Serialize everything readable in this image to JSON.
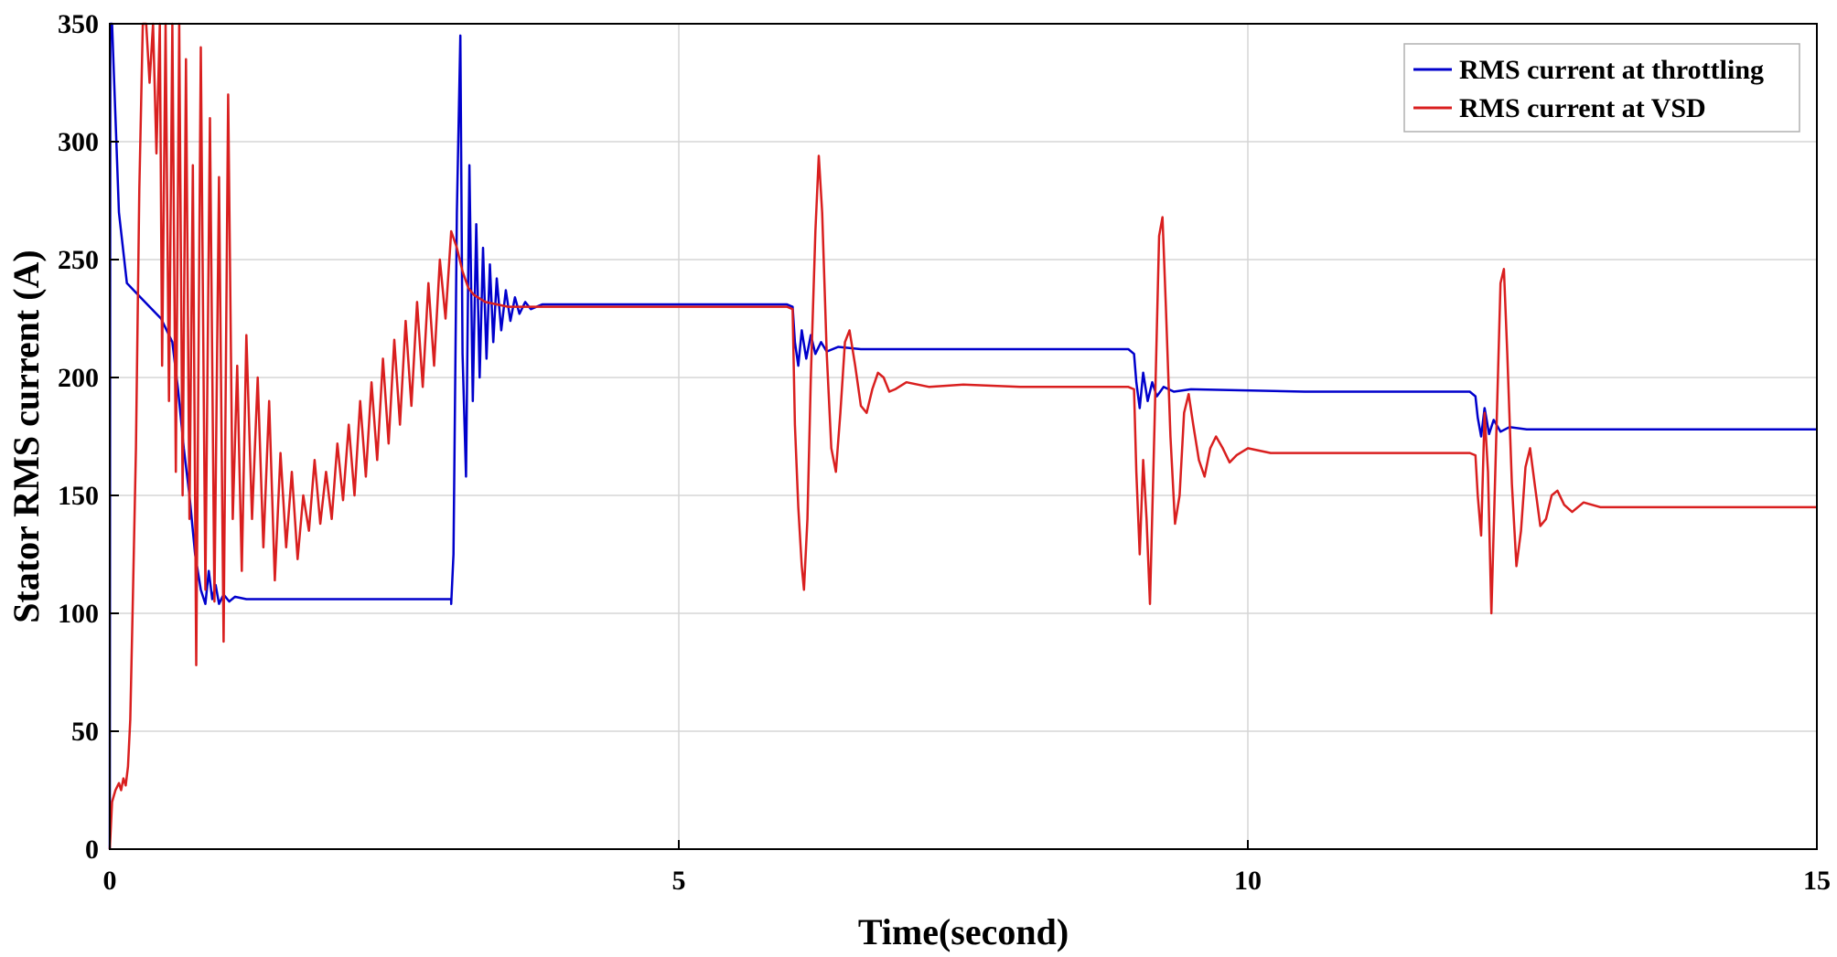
{
  "chart_data": {
    "type": "line",
    "xlabel": "Time(second)",
    "ylabel": "Stator RMS current (A)",
    "xlim": [
      0,
      15
    ],
    "ylim": [
      0,
      350
    ],
    "xticks": [
      0,
      5,
      10,
      15
    ],
    "yticks": [
      0,
      50,
      100,
      150,
      200,
      250,
      300,
      350
    ],
    "grid": true,
    "legend_position": "top-right",
    "series": [
      {
        "name": "RMS current at throttling",
        "color": "#0000cc",
        "points": [
          [
            0,
            0
          ],
          [
            0.005,
            350
          ],
          [
            0.02,
            350
          ],
          [
            0.08,
            270
          ],
          [
            0.15,
            240
          ],
          [
            0.25,
            235
          ],
          [
            0.35,
            230
          ],
          [
            0.45,
            225
          ],
          [
            0.55,
            215
          ],
          [
            0.6,
            195
          ],
          [
            0.65,
            170
          ],
          [
            0.7,
            150
          ],
          [
            0.75,
            125
          ],
          [
            0.8,
            110
          ],
          [
            0.84,
            104
          ],
          [
            0.87,
            118
          ],
          [
            0.9,
            106
          ],
          [
            0.93,
            112
          ],
          [
            0.96,
            104
          ],
          [
            1.0,
            108
          ],
          [
            1.05,
            105
          ],
          [
            1.1,
            107
          ],
          [
            1.2,
            106
          ],
          [
            1.5,
            106
          ],
          [
            2.0,
            106
          ],
          [
            2.5,
            106
          ],
          [
            2.9,
            106
          ],
          [
            3.0,
            106
          ],
          [
            3.0,
            104
          ],
          [
            3.02,
            125
          ],
          [
            3.05,
            270
          ],
          [
            3.08,
            345
          ],
          [
            3.1,
            210
          ],
          [
            3.13,
            158
          ],
          [
            3.16,
            290
          ],
          [
            3.19,
            190
          ],
          [
            3.22,
            265
          ],
          [
            3.25,
            200
          ],
          [
            3.28,
            255
          ],
          [
            3.31,
            208
          ],
          [
            3.34,
            248
          ],
          [
            3.37,
            215
          ],
          [
            3.4,
            242
          ],
          [
            3.44,
            220
          ],
          [
            3.48,
            237
          ],
          [
            3.52,
            224
          ],
          [
            3.56,
            234
          ],
          [
            3.6,
            227
          ],
          [
            3.65,
            232
          ],
          [
            3.7,
            229
          ],
          [
            3.8,
            231
          ],
          [
            4.0,
            231
          ],
          [
            5.0,
            231
          ],
          [
            5.95,
            231
          ],
          [
            6.0,
            230
          ],
          [
            6.02,
            215
          ],
          [
            6.05,
            205
          ],
          [
            6.08,
            220
          ],
          [
            6.12,
            208
          ],
          [
            6.16,
            218
          ],
          [
            6.2,
            210
          ],
          [
            6.25,
            215
          ],
          [
            6.3,
            211
          ],
          [
            6.4,
            213
          ],
          [
            6.6,
            212
          ],
          [
            7.5,
            212
          ],
          [
            8.5,
            212
          ],
          [
            8.95,
            212
          ],
          [
            9.0,
            210
          ],
          [
            9.02,
            198
          ],
          [
            9.05,
            187
          ],
          [
            9.08,
            202
          ],
          [
            9.12,
            190
          ],
          [
            9.16,
            198
          ],
          [
            9.2,
            192
          ],
          [
            9.26,
            196
          ],
          [
            9.35,
            194
          ],
          [
            9.5,
            195
          ],
          [
            10.5,
            194
          ],
          [
            11.5,
            194
          ],
          [
            11.95,
            194
          ],
          [
            12.0,
            192
          ],
          [
            12.02,
            183
          ],
          [
            12.05,
            175
          ],
          [
            12.08,
            187
          ],
          [
            12.12,
            176
          ],
          [
            12.16,
            182
          ],
          [
            12.22,
            177
          ],
          [
            12.3,
            179
          ],
          [
            12.45,
            178
          ],
          [
            13.0,
            178
          ],
          [
            14.0,
            178
          ],
          [
            15.0,
            178
          ]
        ]
      },
      {
        "name": "RMS current at VSD",
        "color": "#d91f1f",
        "points": [
          [
            0,
            0
          ],
          [
            0.02,
            20
          ],
          [
            0.05,
            25
          ],
          [
            0.08,
            28
          ],
          [
            0.1,
            25
          ],
          [
            0.12,
            30
          ],
          [
            0.14,
            27
          ],
          [
            0.16,
            35
          ],
          [
            0.18,
            55
          ],
          [
            0.2,
            100
          ],
          [
            0.23,
            170
          ],
          [
            0.26,
            280
          ],
          [
            0.29,
            350
          ],
          [
            0.32,
            350
          ],
          [
            0.35,
            325
          ],
          [
            0.38,
            350
          ],
          [
            0.41,
            295
          ],
          [
            0.44,
            350
          ],
          [
            0.46,
            205
          ],
          [
            0.49,
            350
          ],
          [
            0.52,
            190
          ],
          [
            0.55,
            350
          ],
          [
            0.58,
            160
          ],
          [
            0.61,
            350
          ],
          [
            0.64,
            150
          ],
          [
            0.67,
            335
          ],
          [
            0.7,
            140
          ],
          [
            0.73,
            290
          ],
          [
            0.76,
            78
          ],
          [
            0.8,
            340
          ],
          [
            0.84,
            110
          ],
          [
            0.88,
            310
          ],
          [
            0.92,
            105
          ],
          [
            0.96,
            285
          ],
          [
            1.0,
            88
          ],
          [
            1.04,
            320
          ],
          [
            1.08,
            140
          ],
          [
            1.12,
            205
          ],
          [
            1.16,
            118
          ],
          [
            1.2,
            218
          ],
          [
            1.25,
            140
          ],
          [
            1.3,
            200
          ],
          [
            1.35,
            128
          ],
          [
            1.4,
            190
          ],
          [
            1.45,
            114
          ],
          [
            1.5,
            168
          ],
          [
            1.55,
            128
          ],
          [
            1.6,
            160
          ],
          [
            1.65,
            123
          ],
          [
            1.7,
            150
          ],
          [
            1.75,
            135
          ],
          [
            1.8,
            165
          ],
          [
            1.85,
            138
          ],
          [
            1.9,
            160
          ],
          [
            1.95,
            140
          ],
          [
            2.0,
            172
          ],
          [
            2.05,
            148
          ],
          [
            2.1,
            180
          ],
          [
            2.15,
            150
          ],
          [
            2.2,
            190
          ],
          [
            2.25,
            158
          ],
          [
            2.3,
            198
          ],
          [
            2.35,
            165
          ],
          [
            2.4,
            208
          ],
          [
            2.45,
            172
          ],
          [
            2.5,
            216
          ],
          [
            2.55,
            180
          ],
          [
            2.6,
            224
          ],
          [
            2.65,
            188
          ],
          [
            2.7,
            232
          ],
          [
            2.75,
            196
          ],
          [
            2.8,
            240
          ],
          [
            2.85,
            205
          ],
          [
            2.9,
            250
          ],
          [
            2.95,
            225
          ],
          [
            3.0,
            262
          ],
          [
            3.05,
            255
          ],
          [
            3.1,
            245
          ],
          [
            3.15,
            238
          ],
          [
            3.2,
            235
          ],
          [
            3.3,
            232
          ],
          [
            3.5,
            230
          ],
          [
            4.0,
            230
          ],
          [
            4.5,
            230
          ],
          [
            5.0,
            230
          ],
          [
            5.5,
            230
          ],
          [
            5.95,
            230
          ],
          [
            6.0,
            229
          ],
          [
            6.02,
            180
          ],
          [
            6.05,
            145
          ],
          [
            6.08,
            120
          ],
          [
            6.1,
            110
          ],
          [
            6.13,
            140
          ],
          [
            6.16,
            200
          ],
          [
            6.2,
            262
          ],
          [
            6.23,
            294
          ],
          [
            6.26,
            270
          ],
          [
            6.3,
            210
          ],
          [
            6.34,
            170
          ],
          [
            6.38,
            160
          ],
          [
            6.42,
            185
          ],
          [
            6.46,
            215
          ],
          [
            6.5,
            220
          ],
          [
            6.55,
            205
          ],
          [
            6.6,
            188
          ],
          [
            6.65,
            185
          ],
          [
            6.7,
            195
          ],
          [
            6.75,
            202
          ],
          [
            6.8,
            200
          ],
          [
            6.85,
            194
          ],
          [
            6.9,
            195
          ],
          [
            7.0,
            198
          ],
          [
            7.2,
            196
          ],
          [
            7.5,
            197
          ],
          [
            8.0,
            196
          ],
          [
            8.5,
            196
          ],
          [
            8.95,
            196
          ],
          [
            9.0,
            195
          ],
          [
            9.02,
            160
          ],
          [
            9.05,
            125
          ],
          [
            9.08,
            165
          ],
          [
            9.11,
            140
          ],
          [
            9.14,
            104
          ],
          [
            9.18,
            180
          ],
          [
            9.22,
            260
          ],
          [
            9.25,
            268
          ],
          [
            9.28,
            230
          ],
          [
            9.32,
            175
          ],
          [
            9.36,
            138
          ],
          [
            9.4,
            150
          ],
          [
            9.44,
            185
          ],
          [
            9.48,
            193
          ],
          [
            9.52,
            180
          ],
          [
            9.57,
            165
          ],
          [
            9.62,
            158
          ],
          [
            9.67,
            170
          ],
          [
            9.72,
            175
          ],
          [
            9.78,
            170
          ],
          [
            9.84,
            164
          ],
          [
            9.9,
            167
          ],
          [
            10.0,
            170
          ],
          [
            10.2,
            168
          ],
          [
            10.5,
            168
          ],
          [
            11.0,
            168
          ],
          [
            11.5,
            168
          ],
          [
            11.95,
            168
          ],
          [
            12.0,
            167
          ],
          [
            12.02,
            150
          ],
          [
            12.05,
            133
          ],
          [
            12.08,
            185
          ],
          [
            12.11,
            160
          ],
          [
            12.14,
            100
          ],
          [
            12.18,
            170
          ],
          [
            12.22,
            240
          ],
          [
            12.25,
            246
          ],
          [
            12.28,
            210
          ],
          [
            12.32,
            155
          ],
          [
            12.36,
            120
          ],
          [
            12.4,
            135
          ],
          [
            12.44,
            162
          ],
          [
            12.48,
            170
          ],
          [
            12.52,
            155
          ],
          [
            12.57,
            137
          ],
          [
            12.62,
            140
          ],
          [
            12.67,
            150
          ],
          [
            12.72,
            152
          ],
          [
            12.78,
            146
          ],
          [
            12.85,
            143
          ],
          [
            12.95,
            147
          ],
          [
            13.1,
            145
          ],
          [
            13.5,
            145
          ],
          [
            14.0,
            145
          ],
          [
            14.5,
            145
          ],
          [
            15.0,
            145
          ]
        ]
      }
    ]
  }
}
